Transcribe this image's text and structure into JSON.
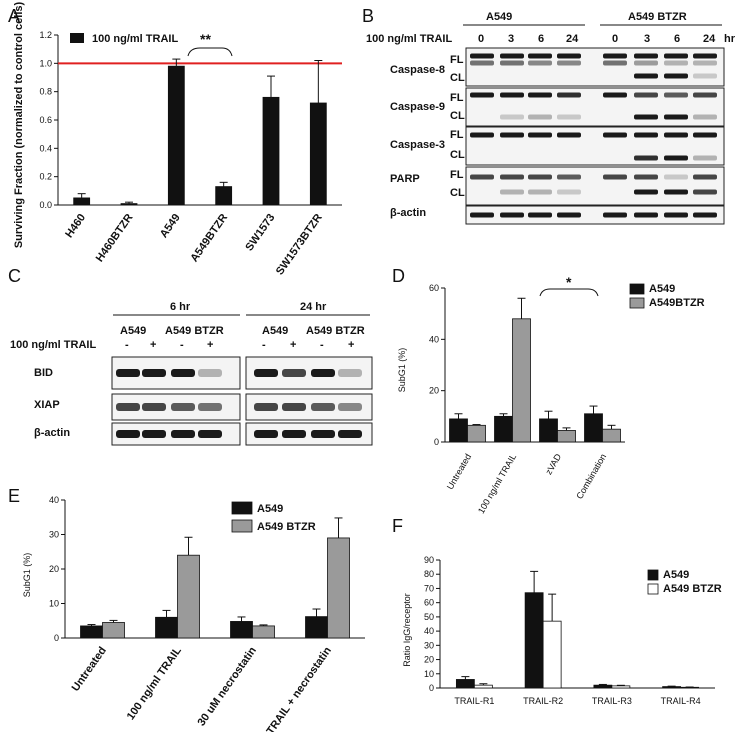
{
  "colors": {
    "black": "#111111",
    "gray": "#9a9a9a",
    "white": "#ffffff",
    "red": "#e02020"
  },
  "panels": {
    "A": {
      "letter": "A",
      "legend": "100 ng/ml TRAIL",
      "signif": "**"
    },
    "B": {
      "letter": "B",
      "cell_a": "A549",
      "cell_b": "A549 BTZR",
      "treat_label": "100 ng/ml TRAIL",
      "unit": "hr",
      "times": [
        "0",
        "3",
        "6",
        "24",
        "0",
        "3",
        "6",
        "24"
      ],
      "rows": [
        {
          "name": "Caspase-8",
          "fl": "FL",
          "cl": "CL"
        },
        {
          "name": "Caspase-9",
          "fl": "FL",
          "cl": "CL"
        },
        {
          "name": "Caspase-3",
          "fl": "FL",
          "cl": "CL"
        },
        {
          "name": "PARP",
          "fl": "FL",
          "cl": "CL"
        },
        {
          "name": "β-actin",
          "fl": "",
          "cl": ""
        }
      ]
    },
    "C": {
      "letter": "C",
      "t1": "6 hr",
      "t2": "24 hr",
      "cell_a": "A549",
      "cell_b": "A549 BTZR",
      "treat_label": "100 ng/ml TRAIL",
      "signs": [
        "-",
        "+",
        "-",
        "+",
        "-",
        "+",
        "-",
        "+"
      ],
      "rows": [
        "BID",
        "XIAP",
        "β-actin"
      ]
    },
    "D": {
      "letter": "D",
      "signif": "*"
    },
    "E": {
      "letter": "E"
    },
    "F": {
      "letter": "F"
    }
  },
  "chart_data": [
    {
      "panel": "A",
      "type": "bar",
      "categories": [
        "H460",
        "H460BTZR",
        "A549",
        "A549BTZR",
        "SW1573",
        "SW1573BTZR"
      ],
      "series": [
        {
          "name": "100 ng/ml TRAIL",
          "values": [
            0.05,
            0.01,
            0.98,
            0.13,
            0.76,
            0.72
          ],
          "errors": [
            0.03,
            0.01,
            0.05,
            0.03,
            0.15,
            0.3
          ]
        }
      ],
      "ylabel": "Surviving Fraction (normalized to control cells)",
      "ylim": [
        0,
        1.2
      ],
      "yticks": [
        "0.0",
        "0.2",
        "0.4",
        "0.6",
        "0.8",
        "1.0",
        "1.2"
      ],
      "reference_line": 1.0,
      "legend": "top-left"
    },
    {
      "panel": "D",
      "type": "bar",
      "categories": [
        "Untreated",
        "100 ng/ml TRAIL",
        "zVAD",
        "Combination"
      ],
      "series": [
        {
          "name": "A549",
          "values": [
            9,
            10,
            9,
            11
          ],
          "errors": [
            2,
            1,
            3,
            3
          ]
        },
        {
          "name": "A549BTZR",
          "values": [
            6.5,
            48,
            4.5,
            5
          ],
          "errors": [
            0.3,
            8,
            1,
            1.5
          ]
        }
      ],
      "ylabel": "SubG1 (%)",
      "ylim": [
        0,
        60
      ],
      "yticks": [
        "0",
        "20",
        "40",
        "60"
      ],
      "legend": "top-right"
    },
    {
      "panel": "E",
      "type": "bar",
      "categories": [
        "Untreated",
        "100 ng/ml TRAIL",
        "30 uM necrostatin",
        "TRAIL + necrostatin"
      ],
      "series": [
        {
          "name": "A549",
          "values": [
            3.5,
            6,
            4.8,
            6.2
          ],
          "errors": [
            0.4,
            2,
            1.3,
            2.2
          ]
        },
        {
          "name": "A549 BTZR",
          "values": [
            4.5,
            24,
            3.5,
            29
          ],
          "errors": [
            0.6,
            5.2,
            0.3,
            5.8
          ]
        }
      ],
      "ylabel": "SubG1 (%)",
      "ylim": [
        0,
        40
      ],
      "yticks": [
        "0",
        "10",
        "20",
        "30",
        "40"
      ],
      "legend": "top"
    },
    {
      "panel": "F",
      "type": "bar",
      "categories": [
        "TRAIL-R1",
        "TRAIL-R2",
        "TRAIL-R3",
        "TRAIL-R4"
      ],
      "series": [
        {
          "name": "A549",
          "values": [
            6,
            67,
            2,
            1
          ],
          "errors": [
            2,
            15,
            0.5,
            0.3
          ]
        },
        {
          "name": "A549 BTZR",
          "values": [
            2,
            47,
            1.5,
            0.5
          ],
          "errors": [
            1,
            19,
            0.4,
            0.2
          ]
        }
      ],
      "ylabel": "Ratio IgG/receptor",
      "ylim": [
        0,
        90
      ],
      "yticks": [
        "0",
        "10",
        "20",
        "30",
        "40",
        "50",
        "60",
        "70",
        "80",
        "90"
      ],
      "legend": "top-right"
    }
  ]
}
